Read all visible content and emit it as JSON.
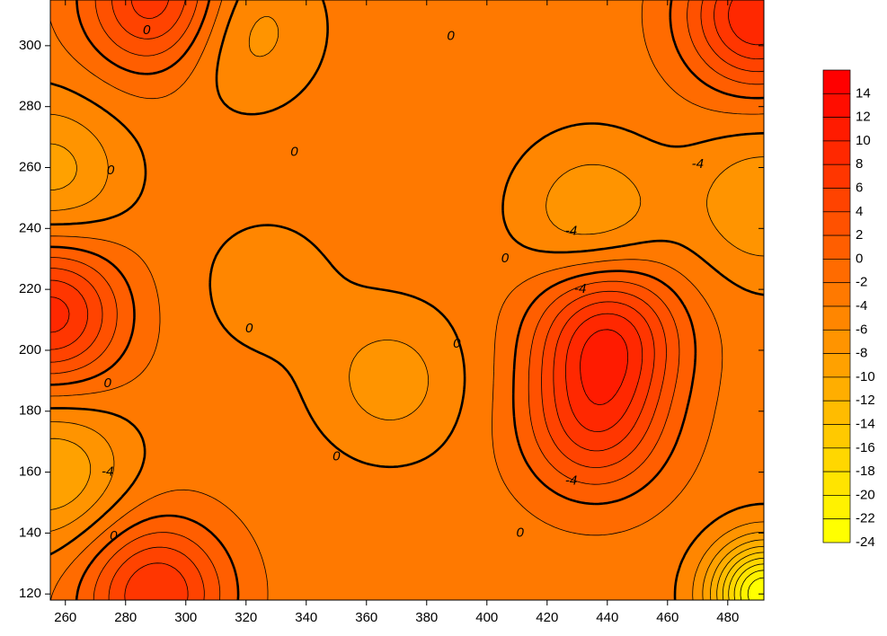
{
  "chart_data": {
    "type": "contour",
    "xlim": [
      255,
      492
    ],
    "ylim": [
      118,
      315
    ],
    "x_ticks": [
      260,
      280,
      300,
      320,
      340,
      360,
      380,
      400,
      420,
      440,
      460,
      480
    ],
    "y_ticks": [
      120,
      140,
      160,
      180,
      200,
      220,
      240,
      260,
      280,
      300
    ],
    "x_tick_labels": [
      "260",
      "280",
      "300",
      "320",
      "340",
      "360",
      "380",
      "400",
      "420",
      "440",
      "460",
      "480"
    ],
    "y_tick_labels": [
      "120",
      "140",
      "160",
      "180",
      "200",
      "220",
      "240",
      "260",
      "280",
      "300"
    ],
    "contour_interval": 2,
    "levels": [
      -24,
      -22,
      -20,
      -18,
      -16,
      -14,
      -12,
      -10,
      -8,
      -6,
      -4,
      -2,
      0,
      2,
      4,
      6,
      8,
      10,
      12,
      14,
      16
    ],
    "colorbar_labels": [
      "14",
      "12",
      "10",
      "8",
      "6",
      "4",
      "2",
      "0",
      "-2",
      "-4",
      "-6",
      "-8",
      "-10",
      "-12",
      "-14",
      "-16",
      "-18",
      "-20",
      "-22",
      "-24"
    ],
    "colorscale": {
      "low": "#ffff00",
      "high": "#ff0000"
    },
    "bold_contours": [
      0,
      -4
    ],
    "contour_labels": [
      {
        "text": "0",
        "x": 287,
        "y": 305
      },
      {
        "text": "0",
        "x": 336,
        "y": 265
      },
      {
        "text": "0",
        "x": 388,
        "y": 303
      },
      {
        "text": "0",
        "x": 275,
        "y": 259
      },
      {
        "text": "0",
        "x": 321,
        "y": 207
      },
      {
        "text": "0",
        "x": 406,
        "y": 230
      },
      {
        "text": "0",
        "x": 390,
        "y": 202
      },
      {
        "text": "0",
        "x": 350,
        "y": 165
      },
      {
        "text": "0",
        "x": 274,
        "y": 189
      },
      {
        "text": "0",
        "x": 276,
        "y": 139
      },
      {
        "text": "0",
        "x": 411,
        "y": 140
      },
      {
        "text": "-4",
        "x": 274,
        "y": 160
      },
      {
        "text": "-4",
        "x": 431,
        "y": 220
      },
      {
        "text": "-4",
        "x": 428,
        "y": 239
      },
      {
        "text": "-4",
        "x": 470,
        "y": 261
      },
      {
        "text": "-4",
        "x": 428,
        "y": 157
      }
    ],
    "extrema": [
      {
        "type": "high",
        "x": 291,
        "y": 315,
        "value": 8
      },
      {
        "type": "high",
        "x": 255,
        "y": 212,
        "value": 9
      },
      {
        "type": "high",
        "x": 490,
        "y": 310,
        "value": 10
      },
      {
        "type": "high",
        "x": 290,
        "y": 120,
        "value": 8
      },
      {
        "type": "high",
        "x": 440,
        "y": 205,
        "value": 9
      },
      {
        "type": "high",
        "x": 436,
        "y": 175,
        "value": 6
      },
      {
        "type": "low",
        "x": 255,
        "y": 258,
        "value": -9
      },
      {
        "type": "low",
        "x": 256,
        "y": 160,
        "value": -10
      },
      {
        "type": "low",
        "x": 317,
        "y": 306,
        "value": -8
      },
      {
        "type": "low",
        "x": 368,
        "y": 190,
        "value": -7
      },
      {
        "type": "low",
        "x": 327,
        "y": 221,
        "value": -5
      },
      {
        "type": "low",
        "x": 435,
        "y": 244,
        "value": -8
      },
      {
        "type": "low",
        "x": 492,
        "y": 248,
        "value": -8
      },
      {
        "type": "low",
        "x": 492,
        "y": 120,
        "value": -24
      }
    ]
  }
}
